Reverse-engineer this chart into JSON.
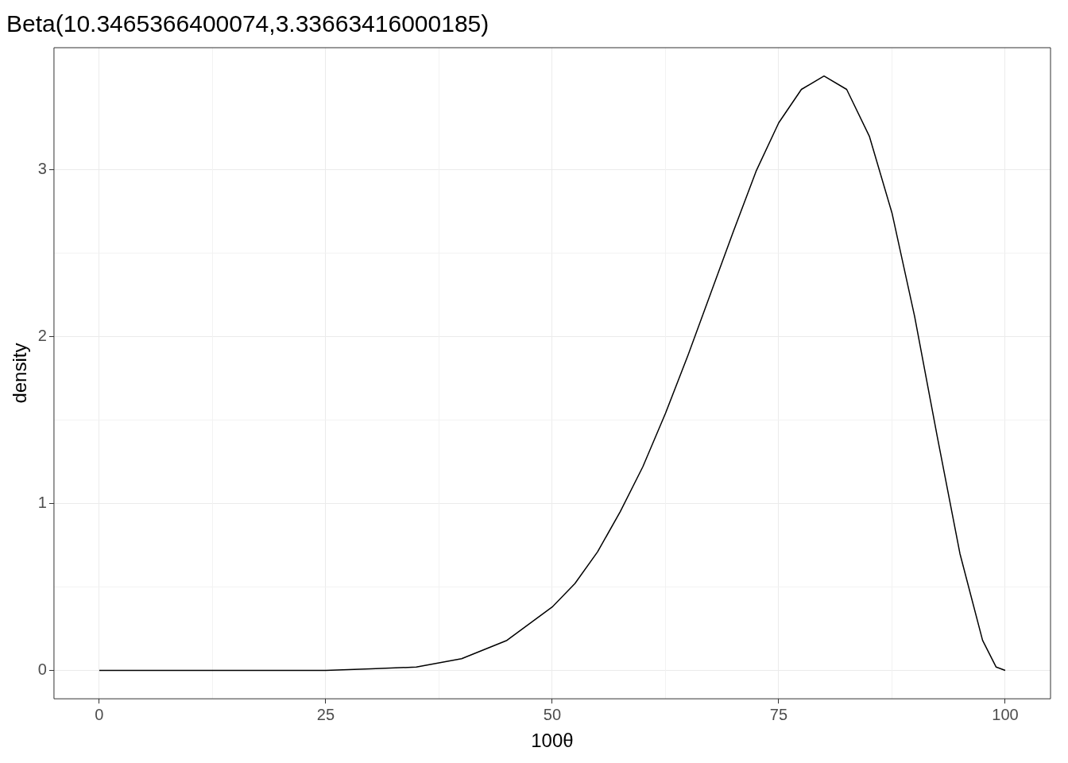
{
  "chart_data": {
    "type": "line",
    "title": "Beta(10.3465366400074,3.33663416000185)",
    "xlabel": "100θ",
    "ylabel": "density",
    "x": [
      0,
      5,
      10,
      15,
      20,
      25,
      30,
      35,
      40,
      45,
      50,
      52.5,
      55,
      57.5,
      60,
      62.5,
      65,
      67.5,
      70,
      72.5,
      75,
      77.5,
      80,
      82.5,
      85,
      87.5,
      90,
      92.5,
      95,
      97.5,
      99,
      100
    ],
    "series": [
      {
        "color": "#000000",
        "values": [
          0,
          0,
          0,
          0,
          0,
          0,
          0.01,
          0.02,
          0.07,
          0.18,
          0.38,
          0.52,
          0.71,
          0.95,
          1.22,
          1.54,
          1.89,
          2.26,
          2.63,
          2.99,
          3.28,
          3.48,
          3.56,
          3.48,
          3.2,
          2.74,
          2.12,
          1.4,
          0.7,
          0.18,
          0.02,
          0
        ]
      }
    ],
    "xlim": [
      -5,
      105
    ],
    "ylim": [
      -0.17,
      3.73
    ],
    "xticks": [
      0,
      25,
      50,
      75,
      100
    ],
    "yticks": [
      0,
      1,
      2,
      3
    ],
    "grid": true,
    "legend": false,
    "marker": "none",
    "line_style": "solid"
  }
}
